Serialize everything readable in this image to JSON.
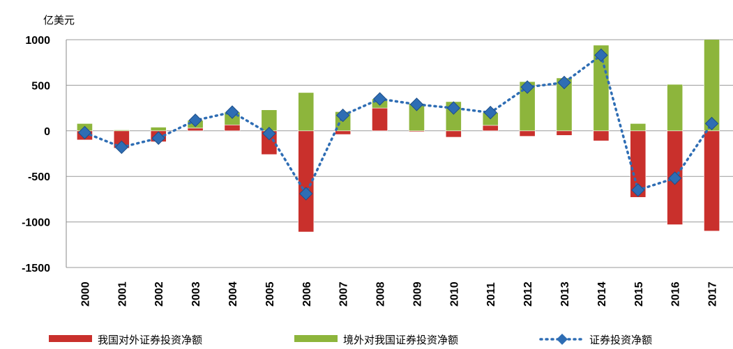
{
  "chart_data": {
    "type": "bar",
    "stacked": true,
    "y_axis_label": "亿美元",
    "categories": [
      "2000",
      "2001",
      "2002",
      "2003",
      "2004",
      "2005",
      "2006",
      "2007",
      "2008",
      "2009",
      "2010",
      "2011",
      "2012",
      "2013",
      "2014",
      "2015",
      "2016",
      "2017"
    ],
    "series": [
      {
        "name": "我国对外证券投资净额",
        "color": "#c9302c",
        "type": "bar",
        "values": [
          -100,
          -190,
          -120,
          30,
          65,
          -260,
          -1110,
          -40,
          250,
          -10,
          -70,
          60,
          -60,
          -50,
          -110,
          -730,
          -1030,
          -1100
        ]
      },
      {
        "name": "境外对我国证券投资净额",
        "color": "#8db53c",
        "type": "bar",
        "values": [
          80,
          10,
          40,
          85,
          140,
          230,
          420,
          210,
          100,
          300,
          320,
          140,
          540,
          580,
          940,
          80,
          510,
          1180
        ]
      },
      {
        "name": "证券投资净额",
        "color": "#2e6db4",
        "type": "line",
        "values": [
          -20,
          -180,
          -80,
          115,
          205,
          -30,
          -690,
          170,
          350,
          290,
          250,
          200,
          480,
          530,
          830,
          -650,
          -520,
          80
        ]
      }
    ],
    "ylim": [
      -1500,
      1000
    ],
    "yticks": [
      -1500,
      -1000,
      -500,
      0,
      500,
      1000
    ],
    "grid": true
  }
}
